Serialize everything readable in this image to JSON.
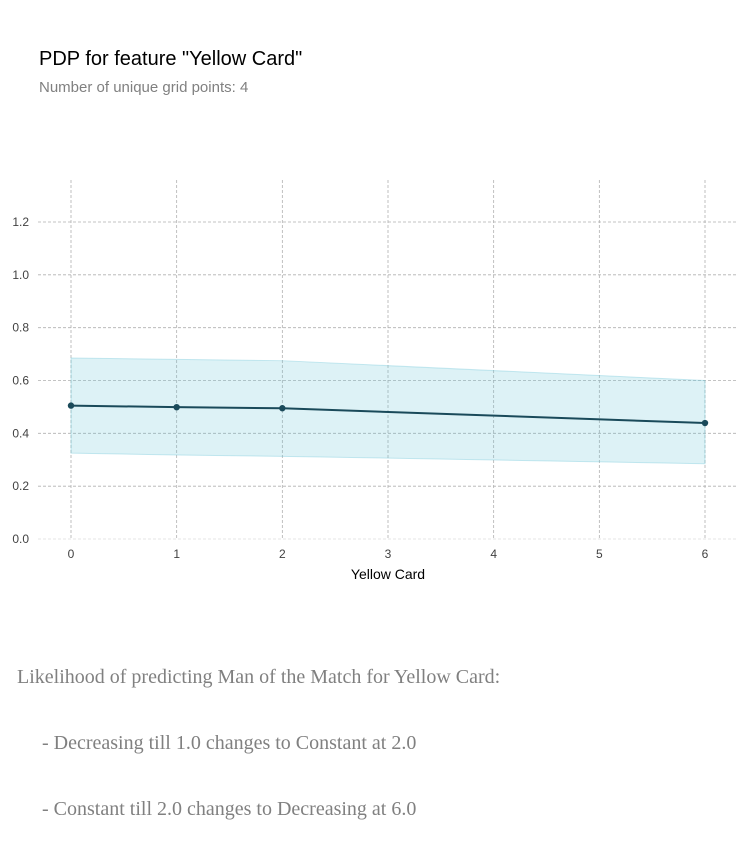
{
  "chart_data": {
    "type": "line",
    "title": "PDP for feature \"Yellow Card\"",
    "subtitle": "Number of unique grid points: 4",
    "xlabel": "Yellow Card",
    "ylabel": "",
    "x": [
      0,
      1,
      2,
      6
    ],
    "xticks": [
      0,
      1,
      2,
      3,
      4,
      5,
      6
    ],
    "xlim": [
      -0.3,
      6.3
    ],
    "yticks": [
      0.0,
      0.2,
      0.4,
      0.6,
      0.8,
      1.0,
      1.2
    ],
    "ytick_labels": [
      "0.0",
      "0.2",
      "0.4",
      "0.6",
      "0.8",
      "1.0",
      "1.2"
    ],
    "ylim": [
      0.0,
      1.37
    ],
    "series": [
      {
        "values": [
          0.505,
          0.499,
          0.495,
          0.439
        ],
        "upper": [
          0.685,
          0.68,
          0.675,
          0.6
        ],
        "lower": [
          0.325,
          0.318,
          0.313,
          0.285
        ]
      }
    ],
    "grid": true,
    "colors": {
      "line": "#1a4a5a",
      "band_fill": "#66c2d7",
      "grid": "#b0b0b0"
    }
  },
  "summary": {
    "line1": "Likelihood of predicting Man of the Match for Yellow Card:",
    "line2": "     - Decreasing till 1.0 changes to Constant at 2.0",
    "line3": "     - Constant till 2.0 changes to Decreasing at 6.0"
  }
}
